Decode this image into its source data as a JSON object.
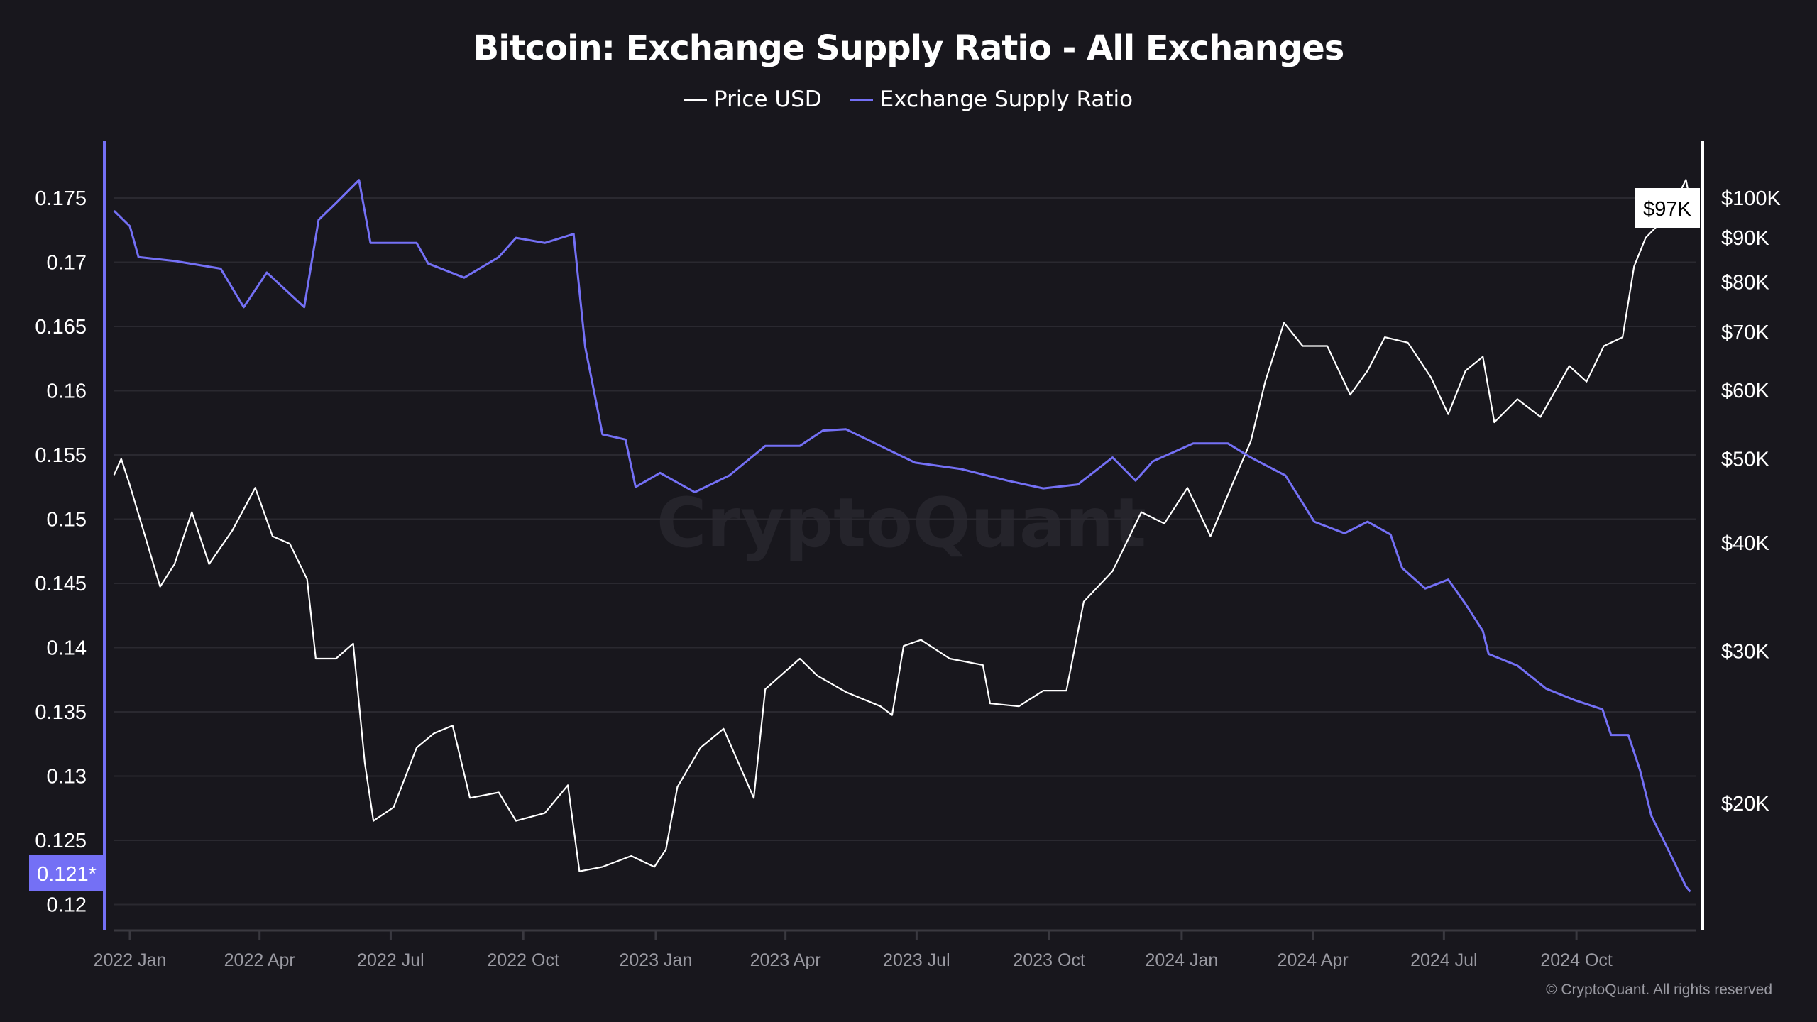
{
  "chart_data": {
    "type": "line",
    "title": "Bitcoin: Exchange Supply Ratio - All Exchanges",
    "legend_position": "top",
    "grid": true,
    "watermark": "CryptoQuant",
    "copyright": "© CryptoQuant. All rights reserved",
    "x_ticks": [
      "2022 Jan",
      "2022 Apr",
      "2022 Jul",
      "2022 Oct",
      "2023 Jan",
      "2023 Apr",
      "2023 Jul",
      "2023 Oct",
      "2024 Jan",
      "2024 Apr",
      "2024 Jul",
      "2024 Oct"
    ],
    "x_tick_dates": [
      "2022-01-01",
      "2022-04-01",
      "2022-07-01",
      "2022-10-01",
      "2023-01-01",
      "2023-04-01",
      "2023-07-01",
      "2023-10-01",
      "2024-01-01",
      "2024-04-01",
      "2024-07-01",
      "2024-10-01"
    ],
    "y_left": {
      "ticks": [
        "0.12",
        "0.125",
        "0.13",
        "0.135",
        "0.14",
        "0.145",
        "0.15",
        "0.155",
        "0.16",
        "0.165",
        "0.17",
        "0.175"
      ],
      "range": [
        0.1169,
        0.1784
      ],
      "current_label": "0.121*"
    },
    "y_right": {
      "scale": "log",
      "ticks": [
        "$20K",
        "$30K",
        "$40K",
        "$50K",
        "$60K",
        "$70K",
        "$80K",
        "$90K",
        "$100K"
      ],
      "tick_values": [
        20000,
        30000,
        40000,
        50000,
        60000,
        70000,
        80000,
        90000,
        100000
      ],
      "current_label": "$97K"
    },
    "series": [
      {
        "name": "Price USD",
        "color": "#ffffff",
        "axis": "right",
        "points": [
          [
            "2021-12-21",
            47900
          ],
          [
            "2021-12-26",
            50000
          ],
          [
            "2022-01-01",
            46600
          ],
          [
            "2022-01-11",
            41000
          ],
          [
            "2022-01-22",
            35600
          ],
          [
            "2022-02-01",
            37800
          ],
          [
            "2022-02-13",
            43400
          ],
          [
            "2022-02-25",
            37800
          ],
          [
            "2022-03-13",
            41300
          ],
          [
            "2022-03-29",
            46300
          ],
          [
            "2022-04-10",
            40700
          ],
          [
            "2022-04-22",
            39900
          ],
          [
            "2022-05-04",
            36300
          ],
          [
            "2022-05-10",
            29400
          ],
          [
            "2022-05-24",
            29400
          ],
          [
            "2022-06-05",
            30600
          ],
          [
            "2022-06-13",
            22300
          ],
          [
            "2022-06-19",
            19100
          ],
          [
            "2022-07-03",
            19800
          ],
          [
            "2022-07-19",
            23200
          ],
          [
            "2022-07-31",
            24100
          ],
          [
            "2022-08-13",
            24600
          ],
          [
            "2022-08-25",
            20300
          ],
          [
            "2022-09-14",
            20600
          ],
          [
            "2022-09-26",
            19100
          ],
          [
            "2022-10-16",
            19500
          ],
          [
            "2022-11-01",
            21000
          ],
          [
            "2022-11-09",
            16700
          ],
          [
            "2022-11-25",
            16900
          ],
          [
            "2022-12-15",
            17400
          ],
          [
            "2022-12-31",
            16900
          ],
          [
            "2023-01-08",
            17700
          ],
          [
            "2023-01-16",
            20900
          ],
          [
            "2023-02-01",
            23200
          ],
          [
            "2023-02-17",
            24400
          ],
          [
            "2023-03-10",
            20300
          ],
          [
            "2023-03-18",
            27100
          ],
          [
            "2023-04-11",
            29400
          ],
          [
            "2023-04-23",
            28100
          ],
          [
            "2023-05-13",
            26900
          ],
          [
            "2023-06-06",
            25900
          ],
          [
            "2023-06-14",
            25300
          ],
          [
            "2023-06-22",
            30400
          ],
          [
            "2023-07-04",
            30900
          ],
          [
            "2023-07-24",
            29400
          ],
          [
            "2023-08-16",
            28900
          ],
          [
            "2023-08-21",
            26100
          ],
          [
            "2023-09-10",
            25900
          ],
          [
            "2023-09-27",
            27000
          ],
          [
            "2023-10-13",
            27000
          ],
          [
            "2023-10-25",
            34200
          ],
          [
            "2023-11-14",
            37100
          ],
          [
            "2023-12-04",
            43400
          ],
          [
            "2023-12-20",
            42100
          ],
          [
            "2024-01-05",
            46300
          ],
          [
            "2024-01-21",
            40700
          ],
          [
            "2024-02-06",
            47100
          ],
          [
            "2024-02-18",
            52400
          ],
          [
            "2024-02-28",
            61400
          ],
          [
            "2024-03-12",
            71800
          ],
          [
            "2024-03-25",
            67500
          ],
          [
            "2024-04-11",
            67500
          ],
          [
            "2024-04-27",
            59300
          ],
          [
            "2024-05-09",
            63200
          ],
          [
            "2024-05-21",
            69100
          ],
          [
            "2024-06-06",
            68100
          ],
          [
            "2024-06-22",
            62100
          ],
          [
            "2024-07-04",
            56300
          ],
          [
            "2024-07-16",
            63200
          ],
          [
            "2024-07-28",
            65600
          ],
          [
            "2024-08-05",
            55100
          ],
          [
            "2024-08-21",
            58600
          ],
          [
            "2024-09-06",
            55900
          ],
          [
            "2024-09-26",
            64000
          ],
          [
            "2024-10-08",
            61400
          ],
          [
            "2024-10-20",
            67500
          ],
          [
            "2024-11-02",
            69100
          ],
          [
            "2024-11-10",
            83400
          ],
          [
            "2024-11-18",
            90000
          ],
          [
            "2024-12-04",
            95800
          ],
          [
            "2024-12-16",
            105000
          ],
          [
            "2024-12-20",
            97000
          ]
        ]
      },
      {
        "name": "Exchange Supply Ratio",
        "color": "#7470f5",
        "axis": "left",
        "points": [
          [
            "2021-12-21",
            0.174
          ],
          [
            "2022-01-01",
            0.1728
          ],
          [
            "2022-01-07",
            0.1704
          ],
          [
            "2022-02-01",
            0.1701
          ],
          [
            "2022-03-05",
            0.1695
          ],
          [
            "2022-03-21",
            0.1665
          ],
          [
            "2022-04-06",
            0.1692
          ],
          [
            "2022-05-02",
            0.1665
          ],
          [
            "2022-05-12",
            0.1733
          ],
          [
            "2022-05-24",
            0.1746
          ],
          [
            "2022-06-09",
            0.1764
          ],
          [
            "2022-06-17",
            0.1715
          ],
          [
            "2022-07-19",
            0.1715
          ],
          [
            "2022-07-27",
            0.1699
          ],
          [
            "2022-08-21",
            0.1688
          ],
          [
            "2022-09-14",
            0.1704
          ],
          [
            "2022-09-26",
            0.1719
          ],
          [
            "2022-10-16",
            0.1715
          ],
          [
            "2022-11-05",
            0.1722
          ],
          [
            "2022-11-13",
            0.1634
          ],
          [
            "2022-11-21",
            0.1589
          ],
          [
            "2022-11-25",
            0.1566
          ],
          [
            "2022-12-11",
            0.1562
          ],
          [
            "2022-12-18",
            0.1525
          ],
          [
            "2023-01-04",
            0.1536
          ],
          [
            "2023-01-28",
            0.1521
          ],
          [
            "2023-02-21",
            0.1534
          ],
          [
            "2023-03-18",
            0.1557
          ],
          [
            "2023-04-11",
            0.1557
          ],
          [
            "2023-04-27",
            0.1569
          ],
          [
            "2023-05-13",
            0.157
          ],
          [
            "2023-06-06",
            0.1557
          ],
          [
            "2023-06-30",
            0.1544
          ],
          [
            "2023-08-01",
            0.1539
          ],
          [
            "2023-09-02",
            0.153
          ],
          [
            "2023-09-27",
            0.1524
          ],
          [
            "2023-10-21",
            0.1527
          ],
          [
            "2023-11-14",
            0.1548
          ],
          [
            "2023-11-30",
            0.153
          ],
          [
            "2023-12-12",
            0.1545
          ],
          [
            "2024-01-09",
            0.1559
          ],
          [
            "2024-02-02",
            0.1559
          ],
          [
            "2024-02-18",
            0.1548
          ],
          [
            "2024-03-13",
            0.1534
          ],
          [
            "2024-04-02",
            0.1498
          ],
          [
            "2024-04-23",
            0.1489
          ],
          [
            "2024-05-09",
            0.1498
          ],
          [
            "2024-05-25",
            0.1488
          ],
          [
            "2024-06-02",
            0.1462
          ],
          [
            "2024-06-18",
            0.1446
          ],
          [
            "2024-07-04",
            0.1453
          ],
          [
            "2024-07-16",
            0.1434
          ],
          [
            "2024-07-28",
            0.1413
          ],
          [
            "2024-08-01",
            0.1395
          ],
          [
            "2024-08-21",
            0.1386
          ],
          [
            "2024-09-10",
            0.1368
          ],
          [
            "2024-09-30",
            0.1359
          ],
          [
            "2024-10-19",
            0.1352
          ],
          [
            "2024-10-25",
            0.1332
          ],
          [
            "2024-11-06",
            0.1332
          ],
          [
            "2024-11-14",
            0.1305
          ],
          [
            "2024-11-22",
            0.1269
          ],
          [
            "2024-12-04",
            0.1242
          ],
          [
            "2024-12-16",
            0.1214
          ],
          [
            "2024-12-19",
            0.121
          ]
        ]
      }
    ]
  }
}
